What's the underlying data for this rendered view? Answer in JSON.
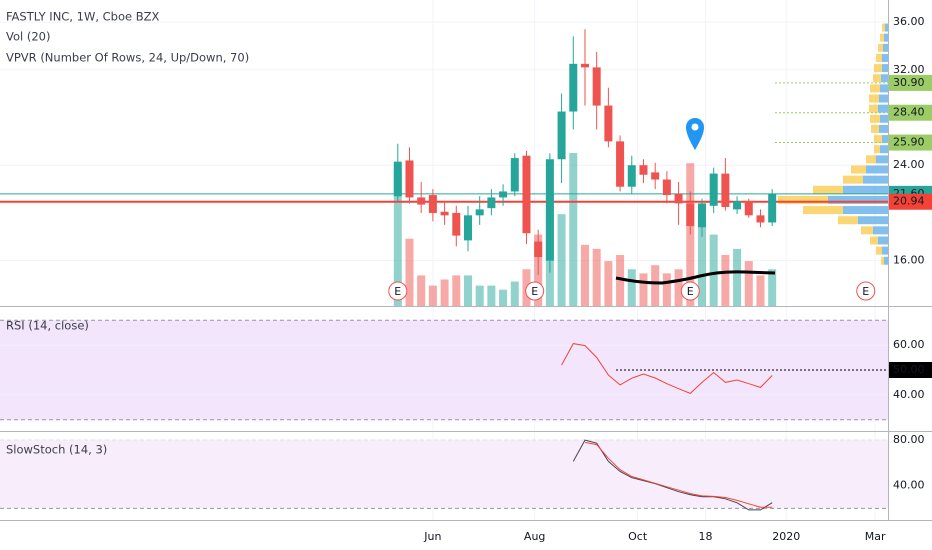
{
  "chart_data": [
    {
      "type": "candlestick",
      "title": "FASTLY INC, 1W, Cboe BZX",
      "legend_items": [
        "Vol (20)",
        "VPVR (Number Of Rows, 24, Up/Down, 70)"
      ],
      "up_color": "#26a69a",
      "down_color": "#ef5350",
      "open": [
        21.4,
        24.4,
        21.3,
        21.5,
        20.1,
        20.0,
        17.7,
        19.8,
        20.4,
        21.3,
        21.8,
        24.8,
        17.6,
        16.0,
        24.5,
        28.5,
        32.5,
        32.2,
        29.0,
        26.0,
        22.2,
        24.0,
        23.4,
        22.8,
        21.6,
        20.8,
        18.8,
        20.6,
        23.3,
        20.3,
        21.0,
        19.8,
        19.2
      ],
      "high": [
        25.8,
        25.5,
        22.6,
        22.0,
        21.0,
        20.6,
        20.6,
        21.4,
        22.0,
        22.4,
        25.0,
        25.2,
        18.6,
        25.0,
        30.0,
        34.8,
        35.4,
        33.5,
        30.5,
        26.5,
        24.8,
        24.5,
        24.2,
        23.5,
        22.6,
        21.8,
        21.2,
        23.8,
        24.6,
        21.4,
        21.2,
        20.3,
        22.0
      ],
      "low": [
        21.0,
        20.8,
        20.0,
        19.3,
        19.0,
        17.2,
        16.8,
        19.0,
        19.8,
        20.6,
        21.4,
        17.4,
        14.8,
        15.0,
        22.5,
        27.0,
        29.0,
        27.0,
        25.5,
        21.8,
        21.6,
        22.5,
        22.0,
        20.8,
        19.0,
        18.2,
        18.0,
        20.0,
        20.2,
        19.9,
        19.6,
        18.8,
        18.9
      ],
      "close": [
        24.3,
        21.3,
        20.7,
        20.0,
        19.8,
        18.1,
        19.8,
        20.3,
        21.3,
        21.8,
        24.6,
        18.3,
        16.3,
        24.5,
        28.5,
        32.5,
        32.2,
        29.0,
        26.0,
        22.2,
        24.0,
        23.2,
        22.8,
        21.5,
        20.8,
        18.9,
        20.8,
        23.3,
        20.5,
        21.0,
        19.8,
        19.2,
        21.6
      ],
      "volume": [
        67,
        33,
        15,
        10,
        13,
        15,
        15,
        10,
        10,
        8,
        12,
        18,
        35,
        55,
        45,
        75,
        30,
        28,
        22,
        25,
        18,
        16,
        20,
        16,
        18,
        70,
        45,
        35,
        25,
        28,
        22,
        15,
        18
      ],
      "volume_lim": [
        0,
        150
      ],
      "ylim": [
        12.2,
        37.85
      ],
      "yticks": [
        {
          "value": 36,
          "label": "36.00"
        },
        {
          "value": 32,
          "label": "32.00"
        },
        {
          "value": 24,
          "label": "24.00"
        },
        {
          "value": 16,
          "label": "16.00"
        }
      ],
      "xlim": [
        -34,
        41.9
      ],
      "xticks": [
        {
          "value": 3,
          "label": "Jun"
        },
        {
          "value": 11.7,
          "label": "Aug"
        },
        {
          "value": 20.5,
          "label": "Oct"
        },
        {
          "value": 26.3,
          "label": "18"
        },
        {
          "value": 33.2,
          "label": "2020"
        },
        {
          "value": 40.8,
          "label": "Mar"
        }
      ],
      "price_lines": [
        {
          "value": 30.9,
          "label": "30.90",
          "color": "#9ccc65",
          "style": "dotted"
        },
        {
          "value": 28.4,
          "label": "28.40",
          "color": "#9ccc65",
          "style": "dotted"
        },
        {
          "value": 25.9,
          "label": "25.90",
          "color": "#9ccc65",
          "style": "dotted"
        },
        {
          "value": 21.6,
          "label": "21.60",
          "color": "#26a69a",
          "style": "solid"
        },
        {
          "value": 20.94,
          "label": "20.94",
          "color": "#f44336",
          "style": "solid"
        }
      ],
      "events": {
        "x": [
          0,
          11.7,
          25,
          40
        ],
        "labels": [
          "E",
          "E",
          "E",
          "E"
        ]
      },
      "vpvr": {
        "prices": [
          35.5,
          34.65,
          33.8,
          32.95,
          32.1,
          31.25,
          30.4,
          29.55,
          28.7,
          27.85,
          27.0,
          26.15,
          25.3,
          24.45,
          23.6,
          22.75,
          21.9,
          21.05,
          20.2,
          19.35,
          18.5,
          17.65,
          16.8,
          15.95
        ],
        "up": [
          3,
          4,
          5,
          6,
          6,
          7,
          8,
          9,
          10,
          8,
          9,
          6,
          8,
          12,
          22,
          25,
          45,
          60,
          45,
          30,
          15,
          10,
          6,
          4
        ],
        "down": [
          3,
          4,
          5,
          6,
          8,
          8,
          10,
          10,
          9,
          10,
          8,
          8,
          6,
          10,
          15,
          20,
          30,
          50,
          40,
          20,
          12,
          8,
          6,
          3
        ],
        "up_color": "#5aa9e6",
        "down_color": "#f9c846"
      }
    },
    {
      "type": "line",
      "title": "RSI (14, close)",
      "series": [
        {
          "color": "#f44336",
          "values": [
            null,
            null,
            null,
            null,
            null,
            null,
            null,
            null,
            null,
            null,
            null,
            null,
            null,
            null,
            52,
            60.6,
            59.8,
            55,
            48,
            44,
            46.7,
            48.4,
            46.8,
            44.5,
            42.5,
            40.6,
            45,
            49,
            45,
            46,
            44.5,
            43,
            47.8
          ]
        }
      ],
      "ylim": [
        25.5,
        75.3
      ],
      "yticks": [
        {
          "value": 60,
          "label": "60.00"
        },
        {
          "value": 40,
          "label": "40.00"
        }
      ],
      "band": [
        30,
        70
      ],
      "band_color": "#f3e5fb",
      "level": {
        "value": 50,
        "label": "50.00"
      }
    },
    {
      "type": "line",
      "title": "SlowStoch (14, 3)",
      "series": [
        {
          "color": "#434651",
          "values": [
            null,
            null,
            null,
            null,
            null,
            null,
            null,
            null,
            null,
            null,
            null,
            null,
            null,
            null,
            null,
            61.3,
            80,
            77.3,
            61.3,
            52.4,
            47,
            44.4,
            41.8,
            38.2,
            34.7,
            32,
            30.2,
            30.2,
            28.4,
            24.9,
            18.7,
            18.7,
            25
          ]
        },
        {
          "color": "#f44336",
          "values": [
            null,
            null,
            null,
            null,
            null,
            null,
            null,
            null,
            null,
            null,
            null,
            null,
            null,
            null,
            null,
            null,
            78,
            76,
            64,
            54,
            48,
            45,
            42,
            39,
            36,
            33,
            31,
            30.5,
            29.6,
            27,
            24,
            21,
            21
          ]
        }
      ],
      "ylim": [
        9.8,
        87.1
      ],
      "yticks": [
        {
          "value": 80,
          "label": "80.00"
        },
        {
          "value": 40,
          "label": "40.00"
        }
      ],
      "band": [
        20,
        80
      ],
      "band_color": "#f8eefb"
    }
  ]
}
